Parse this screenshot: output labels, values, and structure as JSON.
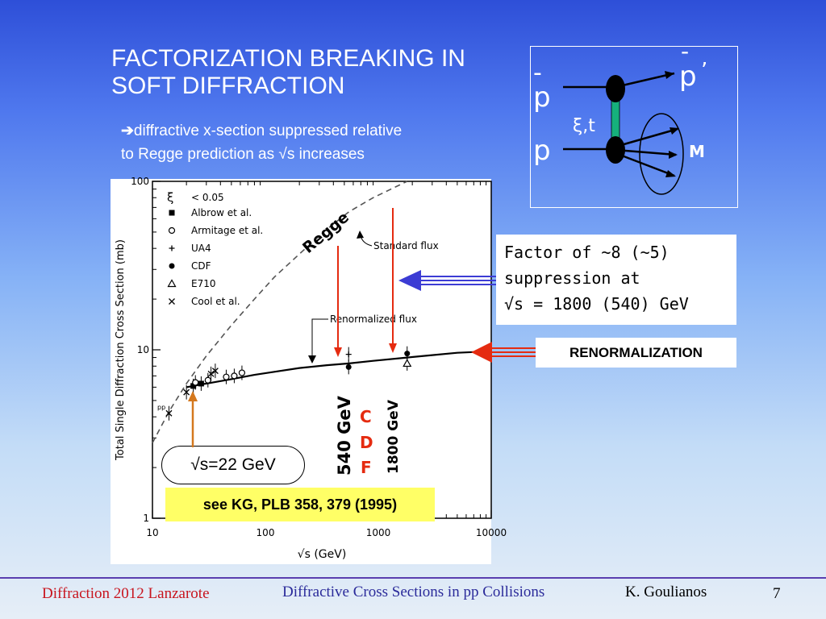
{
  "slide": {
    "title_line1": "FACTORIZATION BREAKING IN",
    "title_line2": "SOFT DIFFRACTION",
    "subtitle_arrow": "➔",
    "subtitle_line1": "diffractive x-section suppressed relative",
    "subtitle_line2": "to Regge prediction as √s increases"
  },
  "diagram": {
    "pbar_in": "p",
    "pbar_out": "p",
    "p_in": "p",
    "exchange_label": "ξ,t",
    "mass_label": "M",
    "bar_mark": "-",
    "prime_mark": "’"
  },
  "callouts": {
    "factor_line1": "Factor of ~8 (~5)",
    "factor_line2": "suppression at",
    "factor_line3": "√s = 1800 (540) GeV",
    "renormalization": "RENORMALIZATION",
    "reference": "see KG, PLB 358, 379  (1995)",
    "sqrt_s_22": "√s=22 GeV",
    "cdf_c": "C",
    "cdf_d": "D",
    "cdf_f": "F",
    "energy_540": "540 GeV",
    "energy_1800": "1800 GeV",
    "colors": {
      "red_arrow": "#e52b10",
      "blue_arrow": "#3c3cd4",
      "orange_arrow": "#d4781e"
    }
  },
  "chart_data": {
    "type": "line",
    "xlabel": "√s  (GeV)",
    "ylabel": "Total Single Diffraction Cross Section (mb)",
    "x_scale": "log",
    "y_scale": "log",
    "xlim": [
      10,
      10000
    ],
    "ylim": [
      1,
      100
    ],
    "x_ticks": [
      10,
      100,
      1000,
      10000
    ],
    "x_tick_labels": [
      "10",
      "100",
      "1000",
      "10000"
    ],
    "y_ticks": [
      1,
      10,
      100
    ],
    "y_tick_labels": [
      "1",
      "10",
      "100"
    ],
    "curve_labels": {
      "regge": "Regge",
      "standard": "Standard flux",
      "renormalized": "Renormalized flux"
    },
    "legend": {
      "placement": "top-left",
      "header_symbol": "ξ",
      "header_text": "<  0.05",
      "entries": [
        {
          "symbol": "square",
          "name": "Albrow  et  al."
        },
        {
          "symbol": "circle-open",
          "name": "Armitage  et  al."
        },
        {
          "symbol": "plus",
          "name": "UA4"
        },
        {
          "symbol": "circle-filled",
          "name": "CDF"
        },
        {
          "symbol": "triangle-open",
          "name": "E710"
        },
        {
          "symbol": "cross",
          "name": "Cool et al."
        }
      ]
    },
    "series": [
      {
        "name": "Standard flux",
        "style": "dashed",
        "x": [
          10,
          14,
          20,
          30,
          50,
          80,
          120,
          200,
          350,
          550,
          900,
          1800
        ],
        "y": [
          2.8,
          4.3,
          6.3,
          9.2,
          14,
          20,
          27,
          37,
          52,
          66,
          80,
          100
        ]
      },
      {
        "name": "Renormalized flux",
        "style": "solid",
        "x": [
          20,
          30,
          50,
          80,
          120,
          200,
          350,
          550,
          900,
          1800,
          3000,
          5000,
          10000
        ],
        "y": [
          6.0,
          6.3,
          6.7,
          7.1,
          7.4,
          7.8,
          8.1,
          8.3,
          8.6,
          9.0,
          9.3,
          9.6,
          9.8
        ]
      }
    ],
    "points": [
      {
        "set": "UA4",
        "symbol": "plus",
        "x": 546,
        "y": 9.4
      },
      {
        "set": "CDF",
        "symbol": "circle-filled",
        "x": 546,
        "y": 7.9
      },
      {
        "set": "CDF",
        "symbol": "circle-filled",
        "x": 1800,
        "y": 9.5
      },
      {
        "set": "E710",
        "symbol": "triangle-open",
        "x": 1800,
        "y": 8.3
      },
      {
        "set": "pp",
        "symbol": "cross",
        "x": 14,
        "y": 4.2
      },
      {
        "set": "pp",
        "symbol": "cross",
        "x": 20,
        "y": 5.6
      },
      {
        "set": "Albrow",
        "symbol": "square",
        "x": 23,
        "y": 6.1
      },
      {
        "set": "Albrow",
        "symbol": "square",
        "x": 27,
        "y": 6.3
      },
      {
        "set": "Armitage",
        "symbol": "circle-open",
        "x": 24,
        "y": 6.4
      },
      {
        "set": "Armitage",
        "symbol": "circle-open",
        "x": 31,
        "y": 6.6
      },
      {
        "set": "Armitage",
        "symbol": "circle-open",
        "x": 45,
        "y": 6.9
      },
      {
        "set": "Armitage",
        "symbol": "circle-open",
        "x": 53,
        "y": 7.0
      },
      {
        "set": "Armitage",
        "symbol": "circle-open",
        "x": 62,
        "y": 7.3
      },
      {
        "set": "Cool",
        "symbol": "cross",
        "x": 33,
        "y": 7.2
      },
      {
        "set": "Cool",
        "symbol": "cross",
        "x": 36,
        "y": 7.5
      }
    ]
  },
  "footer": {
    "left": "Diffraction 2012 Lanzarote",
    "center": "Diffractive Cross Sections in pp Collisions",
    "author": "K. Goulianos",
    "page": "7"
  }
}
